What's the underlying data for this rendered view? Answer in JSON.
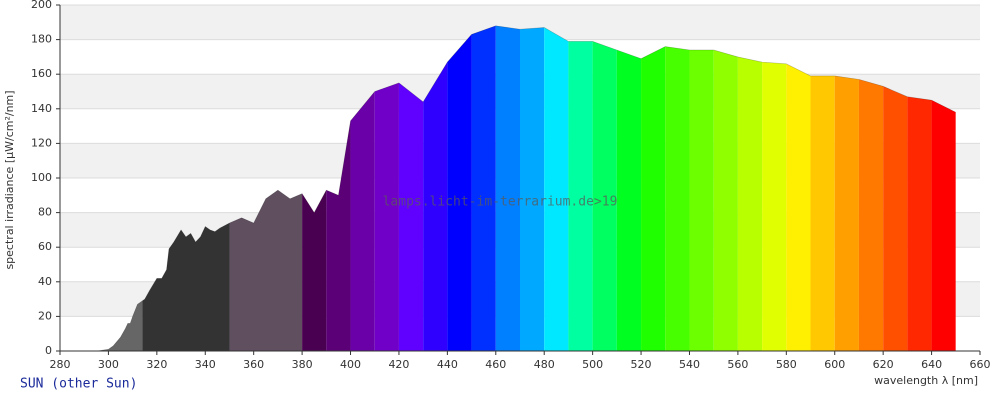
{
  "chart_data": {
    "type": "area",
    "watermark": "lamps.licht-im-terrarium.de>19",
    "footer": "SUN (other Sun)",
    "ylabel": "spectral irradiance [µW/cm²/nm]",
    "xlabel": "wavelength λ [nm]",
    "x": [
      295,
      300,
      302,
      305,
      307,
      308,
      309,
      310,
      312,
      314,
      315,
      317,
      320,
      322,
      324,
      325,
      327,
      330,
      332,
      334,
      336,
      338,
      340,
      342,
      344,
      346,
      350,
      355,
      360,
      365,
      370,
      375,
      380,
      385,
      390,
      395,
      400,
      410,
      420,
      430,
      440,
      450,
      460,
      470,
      480,
      490,
      500,
      510,
      520,
      530,
      540,
      550,
      560,
      570,
      580,
      590,
      600,
      610,
      620,
      630,
      640,
      650
    ],
    "values": [
      0,
      1,
      3,
      8,
      13,
      16,
      16,
      20,
      27,
      29,
      30,
      35,
      42,
      42,
      47,
      59,
      63,
      70,
      66,
      68,
      63,
      66,
      72,
      70,
      69,
      71,
      74,
      77,
      74,
      88,
      93,
      88,
      91,
      80,
      93,
      90,
      133,
      150,
      155,
      144,
      167,
      183,
      188,
      186,
      187,
      179,
      179,
      174,
      169,
      176,
      174,
      174,
      170,
      167,
      166,
      159,
      159,
      157,
      153,
      147,
      145,
      138
    ],
    "bands": [
      {
        "from": 295,
        "to": 314,
        "color": "#666666"
      },
      {
        "from": 314,
        "to": 350,
        "color": "#333333"
      },
      {
        "from": 350,
        "to": 380,
        "color": "#5f4f5f"
      },
      {
        "from": 380,
        "to": 390,
        "color": "#4a0050"
      },
      {
        "from": 390,
        "to": 400,
        "color": "#5c0078"
      },
      {
        "from": 400,
        "to": 410,
        "color": "#6a00a8"
      },
      {
        "from": 410,
        "to": 420,
        "color": "#7000c8"
      },
      {
        "from": 420,
        "to": 430,
        "color": "#6000ff"
      },
      {
        "from": 430,
        "to": 440,
        "color": "#3000ff"
      },
      {
        "from": 440,
        "to": 450,
        "color": "#0000ff"
      },
      {
        "from": 450,
        "to": 460,
        "color": "#0030ff"
      },
      {
        "from": 460,
        "to": 470,
        "color": "#0080ff"
      },
      {
        "from": 470,
        "to": 480,
        "color": "#00a8ff"
      },
      {
        "from": 480,
        "to": 490,
        "color": "#00e8ff"
      },
      {
        "from": 490,
        "to": 500,
        "color": "#00ffa0"
      },
      {
        "from": 500,
        "to": 510,
        "color": "#00ff60"
      },
      {
        "from": 510,
        "to": 520,
        "color": "#00ff20"
      },
      {
        "from": 520,
        "to": 530,
        "color": "#20ff00"
      },
      {
        "from": 530,
        "to": 540,
        "color": "#48ff00"
      },
      {
        "from": 540,
        "to": 550,
        "color": "#6cff00"
      },
      {
        "from": 550,
        "to": 560,
        "color": "#90ff00"
      },
      {
        "from": 560,
        "to": 570,
        "color": "#b8ff00"
      },
      {
        "from": 570,
        "to": 580,
        "color": "#e0ff00"
      },
      {
        "from": 580,
        "to": 590,
        "color": "#ffef00"
      },
      {
        "from": 590,
        "to": 600,
        "color": "#ffc800"
      },
      {
        "from": 600,
        "to": 610,
        "color": "#ffa000"
      },
      {
        "from": 610,
        "to": 620,
        "color": "#ff7800"
      },
      {
        "from": 620,
        "to": 630,
        "color": "#ff5000"
      },
      {
        "from": 630,
        "to": 640,
        "color": "#ff2800"
      },
      {
        "from": 640,
        "to": 650,
        "color": "#ff0000"
      }
    ],
    "xlim": [
      280,
      660
    ],
    "xticks": [
      280,
      300,
      320,
      340,
      360,
      380,
      400,
      420,
      440,
      460,
      480,
      500,
      520,
      540,
      560,
      580,
      600,
      620,
      640,
      660
    ],
    "ylim": [
      0,
      200
    ],
    "yticks": [
      0,
      20,
      40,
      60,
      80,
      100,
      120,
      140,
      160,
      180,
      200
    ],
    "grid": true
  }
}
